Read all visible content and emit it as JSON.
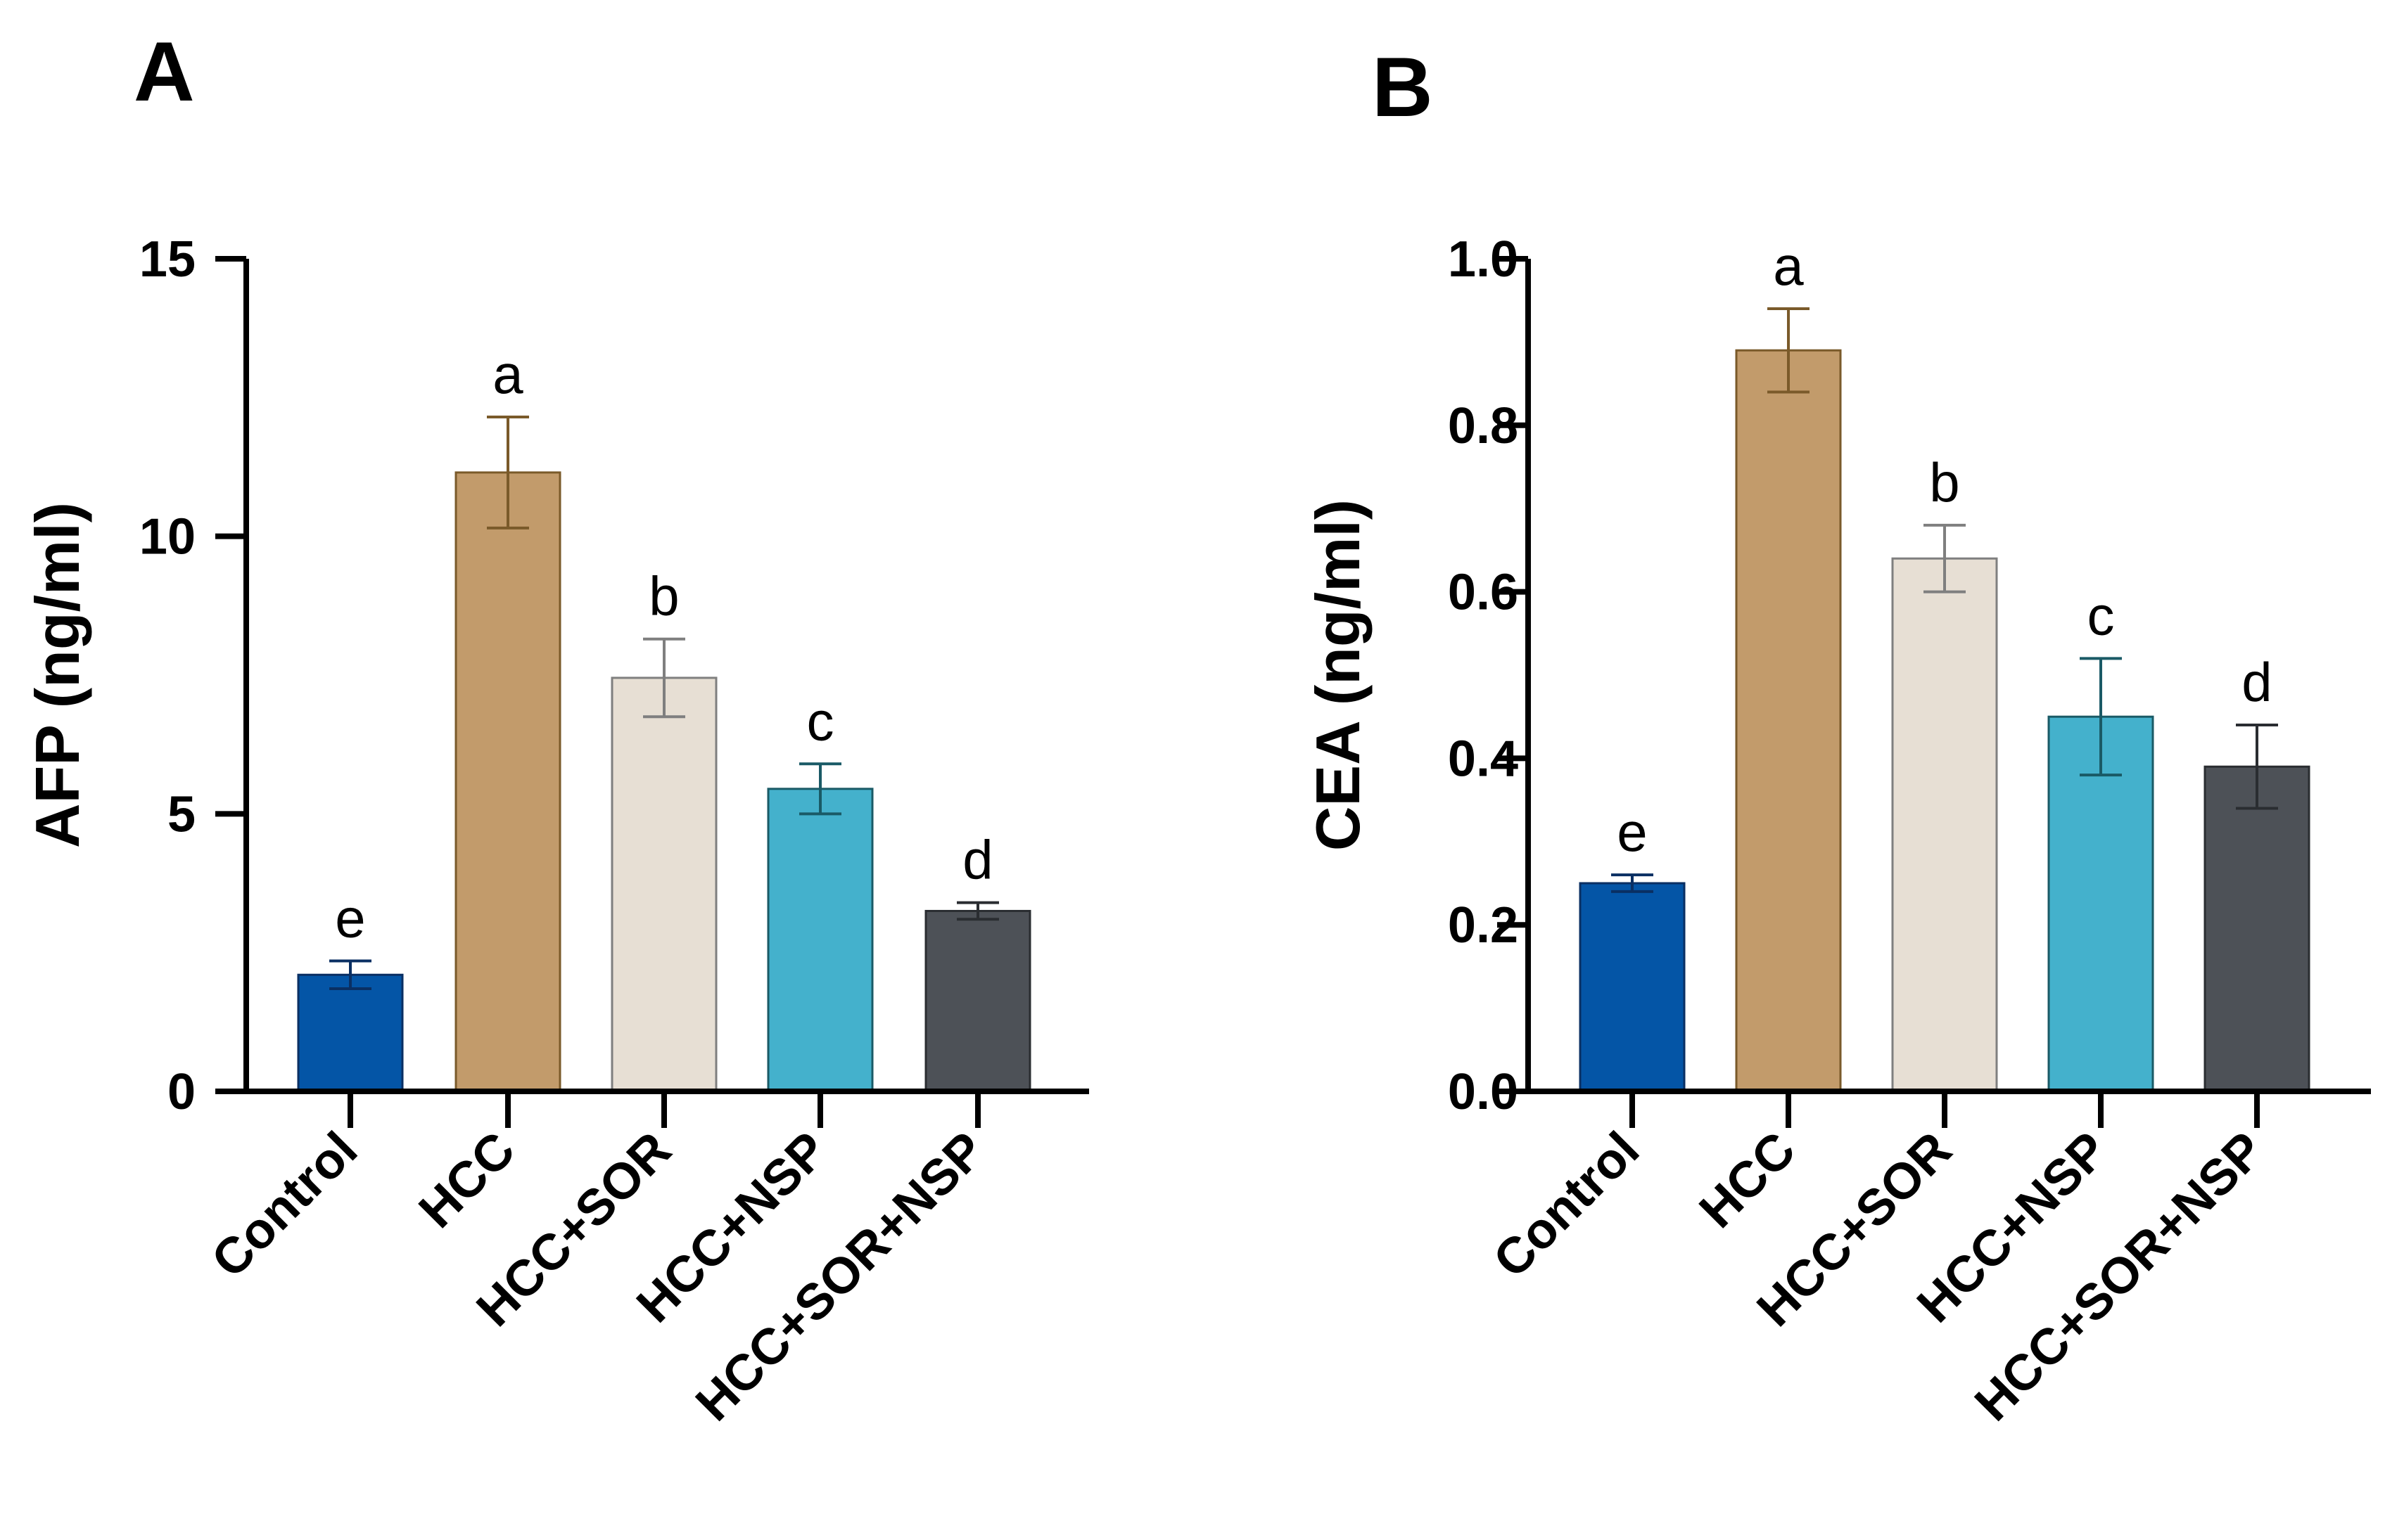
{
  "figure": {
    "panels": [
      {
        "panel_label": "A",
        "tick_labels": [
          "0",
          "5",
          "10",
          "15"
        ],
        "chart_key": 0
      },
      {
        "panel_label": "B",
        "tick_labels": [
          "0.0",
          "0.2",
          "0.4",
          "0.6",
          "0.8",
          "1.0"
        ],
        "chart_key": 1
      }
    ]
  },
  "chart_data": [
    {
      "type": "bar",
      "panel": "A",
      "title": "",
      "xlabel": "",
      "ylabel": "AFP (ng/ml)",
      "ylim": [
        0,
        15
      ],
      "yticks": [
        0,
        5,
        10,
        15
      ],
      "categories": [
        "Control",
        "HCC",
        "HCC+SOR",
        "HCC+NSP",
        "HCC+SOR+NSP"
      ],
      "values": [
        2.1,
        11.15,
        7.45,
        5.45,
        3.25
      ],
      "errors": [
        0.25,
        1.0,
        0.7,
        0.45,
        0.15
      ],
      "significance": [
        "e",
        "a",
        "b",
        "c",
        "d"
      ],
      "colors": [
        "#0455A6",
        "#C29B6B",
        "#E7DFD4",
        "#44B1CC",
        "#4D5157"
      ],
      "edge_colors": [
        "#0a2f63",
        "#7a5a2a",
        "#7f7f7f",
        "#1a5a66",
        "#2a2d31"
      ]
    },
    {
      "type": "bar",
      "panel": "B",
      "title": "",
      "xlabel": "",
      "ylabel": "CEA (ng/ml)",
      "ylim": [
        0,
        1.0
      ],
      "yticks": [
        0.0,
        0.2,
        0.4,
        0.6,
        0.8,
        1.0
      ],
      "categories": [
        "Control",
        "HCC",
        "HCC+SOR",
        "HCC+NSP",
        "HCC+SOR+NSP"
      ],
      "values": [
        0.25,
        0.89,
        0.64,
        0.45,
        0.39
      ],
      "errors": [
        0.01,
        0.05,
        0.04,
        0.07,
        0.05
      ],
      "significance": [
        "e",
        "a",
        "b",
        "c",
        "d"
      ],
      "colors": [
        "#0455A6",
        "#C29B6B",
        "#E7DFD4",
        "#44B1CC",
        "#4D5157"
      ],
      "edge_colors": [
        "#0a2f63",
        "#7a5a2a",
        "#7f7f7f",
        "#1a5a66",
        "#2a2d31"
      ]
    }
  ]
}
